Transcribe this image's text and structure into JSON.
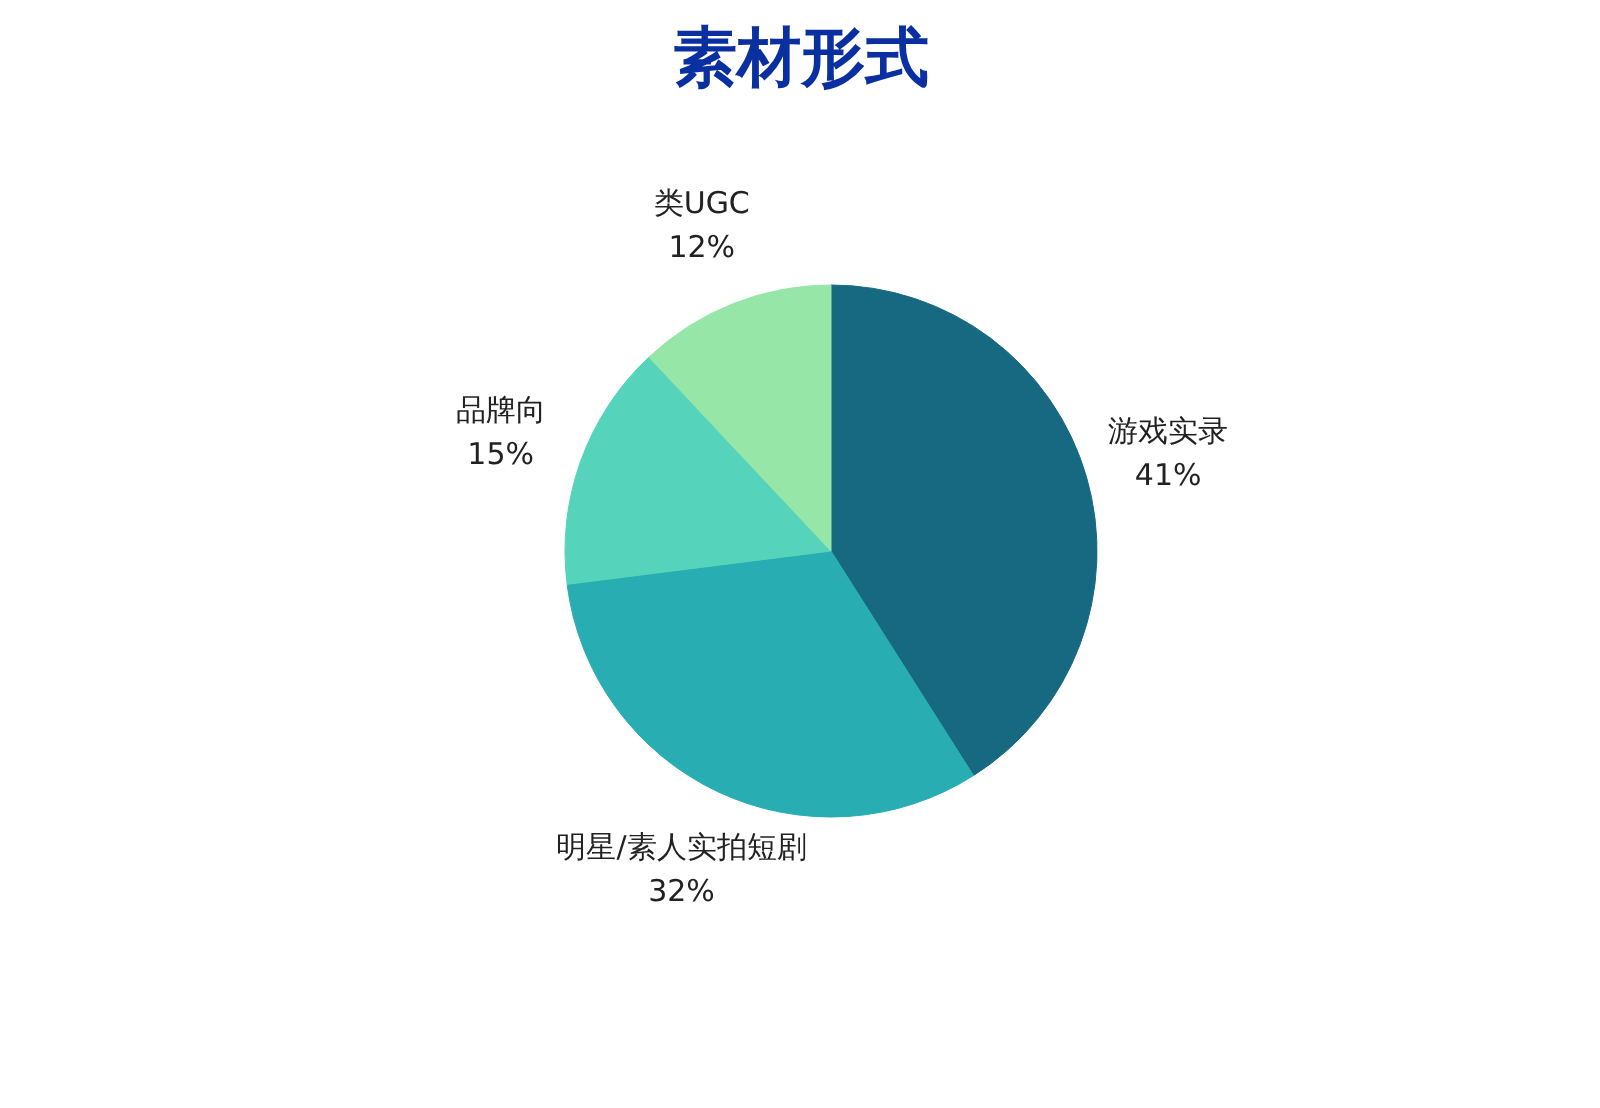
{
  "chart_data": {
    "type": "pie",
    "title": "素材形式",
    "categories": [
      "游戏实录",
      "明星/素人实拍短剧",
      "品牌向",
      "类UGC"
    ],
    "values": [
      41,
      32,
      15,
      12
    ],
    "value_labels": [
      "41%",
      "32%",
      "15%",
      "12%"
    ],
    "colors": [
      "#176982",
      "#28aeb2",
      "#56d4bb",
      "#96e6a7"
    ]
  }
}
